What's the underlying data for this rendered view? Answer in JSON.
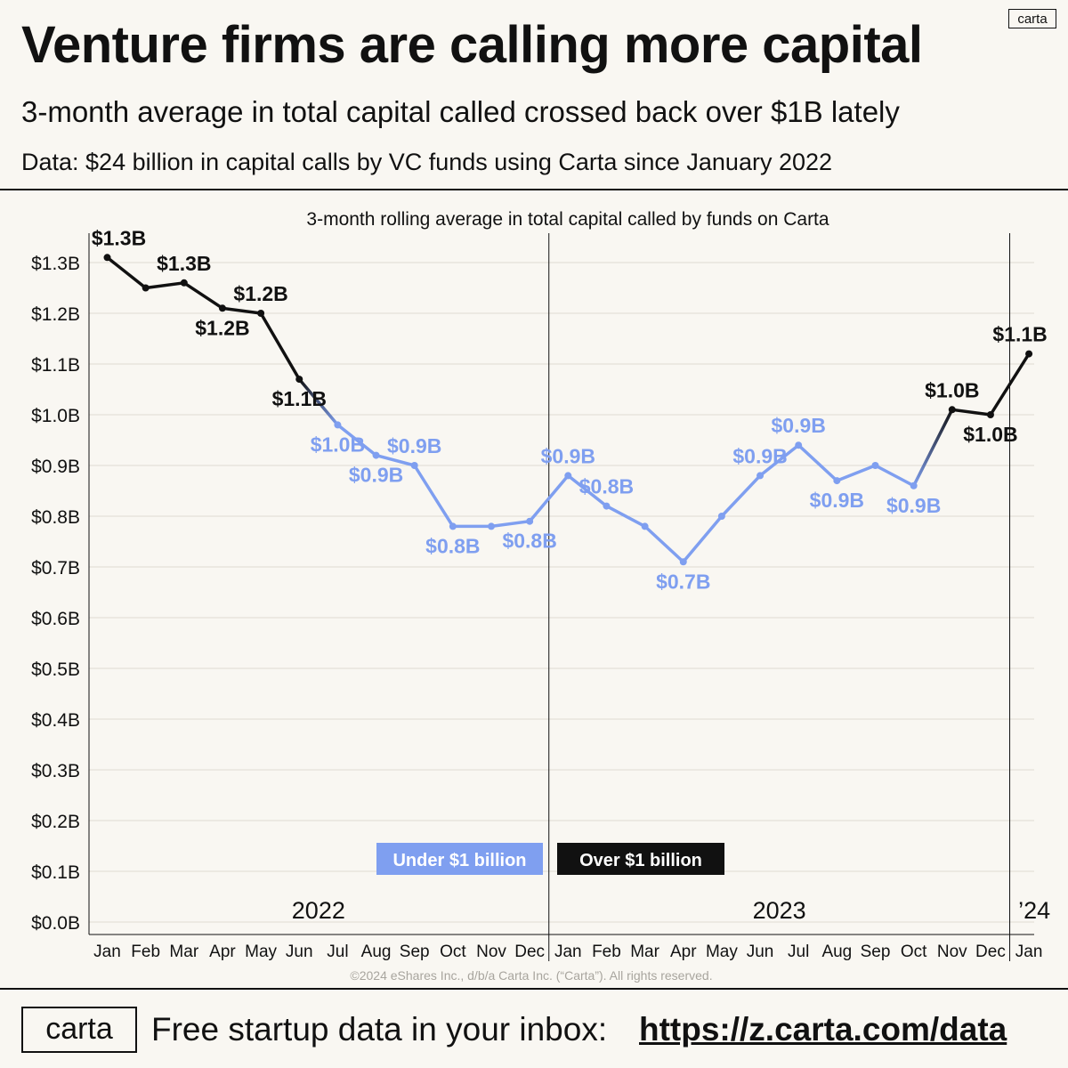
{
  "header": {
    "title": "Venture firms are calling more capital",
    "subtitle": "3-month average in total capital called crossed back over $1B lately",
    "data_note": "Data:  $24 billion in capital calls by VC funds using Carta since January 2022",
    "logo_text": "carta"
  },
  "colors": {
    "over": "#111111",
    "under": "#7f9ff0",
    "grid": "#dedbd3",
    "background": "#f9f7f2"
  },
  "chart_data": {
    "type": "line",
    "title": "3-month rolling average in total capital called by funds on Carta",
    "ylabel": "",
    "ylim": [
      0,
      1.35
    ],
    "yticks": [
      0,
      0.1,
      0.2,
      0.3,
      0.4,
      0.5,
      0.6,
      0.7,
      0.8,
      0.9,
      1.0,
      1.1,
      1.2,
      1.3
    ],
    "ytick_labels": [
      "$0.0B",
      "$0.1B",
      "$0.2B",
      "$0.3B",
      "$0.4B",
      "$0.5B",
      "$0.6B",
      "$0.7B",
      "$0.8B",
      "$0.9B",
      "$1.0B",
      "$1.1B",
      "$1.2B",
      "$1.3B"
    ],
    "categories": [
      "Jan",
      "Feb",
      "Mar",
      "Apr",
      "May",
      "Jun",
      "Jul",
      "Aug",
      "Sep",
      "Oct",
      "Nov",
      "Dec",
      "Jan",
      "Feb",
      "Mar",
      "Apr",
      "May",
      "Jun",
      "Jul",
      "Aug",
      "Sep",
      "Oct",
      "Nov",
      "Dec",
      "Jan"
    ],
    "values": [
      1.31,
      1.25,
      1.26,
      1.21,
      1.2,
      1.07,
      0.98,
      0.92,
      0.9,
      0.78,
      0.78,
      0.79,
      0.88,
      0.82,
      0.78,
      0.71,
      0.8,
      0.88,
      0.94,
      0.87,
      0.9,
      0.86,
      1.01,
      1.0,
      1.12
    ],
    "data_labels": [
      {
        "index": 0,
        "text": "$1.3B",
        "side": "above"
      },
      {
        "index": 2,
        "text": "$1.3B",
        "side": "above"
      },
      {
        "index": 3,
        "text": "$1.2B",
        "side": "below"
      },
      {
        "index": 4,
        "text": "$1.2B",
        "side": "above"
      },
      {
        "index": 5,
        "text": "$1.1B",
        "side": "below"
      },
      {
        "index": 6,
        "text": "$1.0B",
        "side": "below"
      },
      {
        "index": 7,
        "text": "$0.9B",
        "side": "below"
      },
      {
        "index": 8,
        "text": "$0.9B",
        "side": "above"
      },
      {
        "index": 9,
        "text": "$0.8B",
        "side": "below"
      },
      {
        "index": 12,
        "text": "$0.9B",
        "side": "above"
      },
      {
        "index": 11,
        "text": "$0.8B",
        "side": "below"
      },
      {
        "index": 13,
        "text": "$0.8B",
        "side": "above"
      },
      {
        "index": 15,
        "text": "$0.7B",
        "side": "below"
      },
      {
        "index": 17,
        "text": "$0.9B",
        "side": "above"
      },
      {
        "index": 18,
        "text": "$0.9B",
        "side": "above"
      },
      {
        "index": 19,
        "text": "$0.9B",
        "side": "below"
      },
      {
        "index": 21,
        "text": "$0.9B",
        "side": "below"
      },
      {
        "index": 22,
        "text": "$1.0B",
        "side": "above"
      },
      {
        "index": 23,
        "text": "$1.0B",
        "side": "below"
      },
      {
        "index": 24,
        "text": "$1.1B",
        "side": "above"
      }
    ],
    "threshold": 1.0,
    "year_labels": [
      {
        "text": "2022",
        "start": 0,
        "end": 11
      },
      {
        "text": "2023",
        "start": 12,
        "end": 23
      },
      {
        "text": "’24",
        "start": 24,
        "end": 24
      }
    ],
    "year_dividers_after": [
      11,
      23
    ],
    "legend": [
      {
        "label": "Under $1 billion",
        "color": "#7f9ff0"
      },
      {
        "label": "Over $1 billion",
        "color": "#111111"
      }
    ],
    "legend_position": "bottom-center",
    "grid": true
  },
  "copyright": "©2024 eShares Inc., d/b/a Carta Inc. (“Carta”). All rights reserved.",
  "footer": {
    "logo_text": "carta",
    "text": "Free startup data in your inbox:",
    "link": "https://z.carta.com/data"
  }
}
